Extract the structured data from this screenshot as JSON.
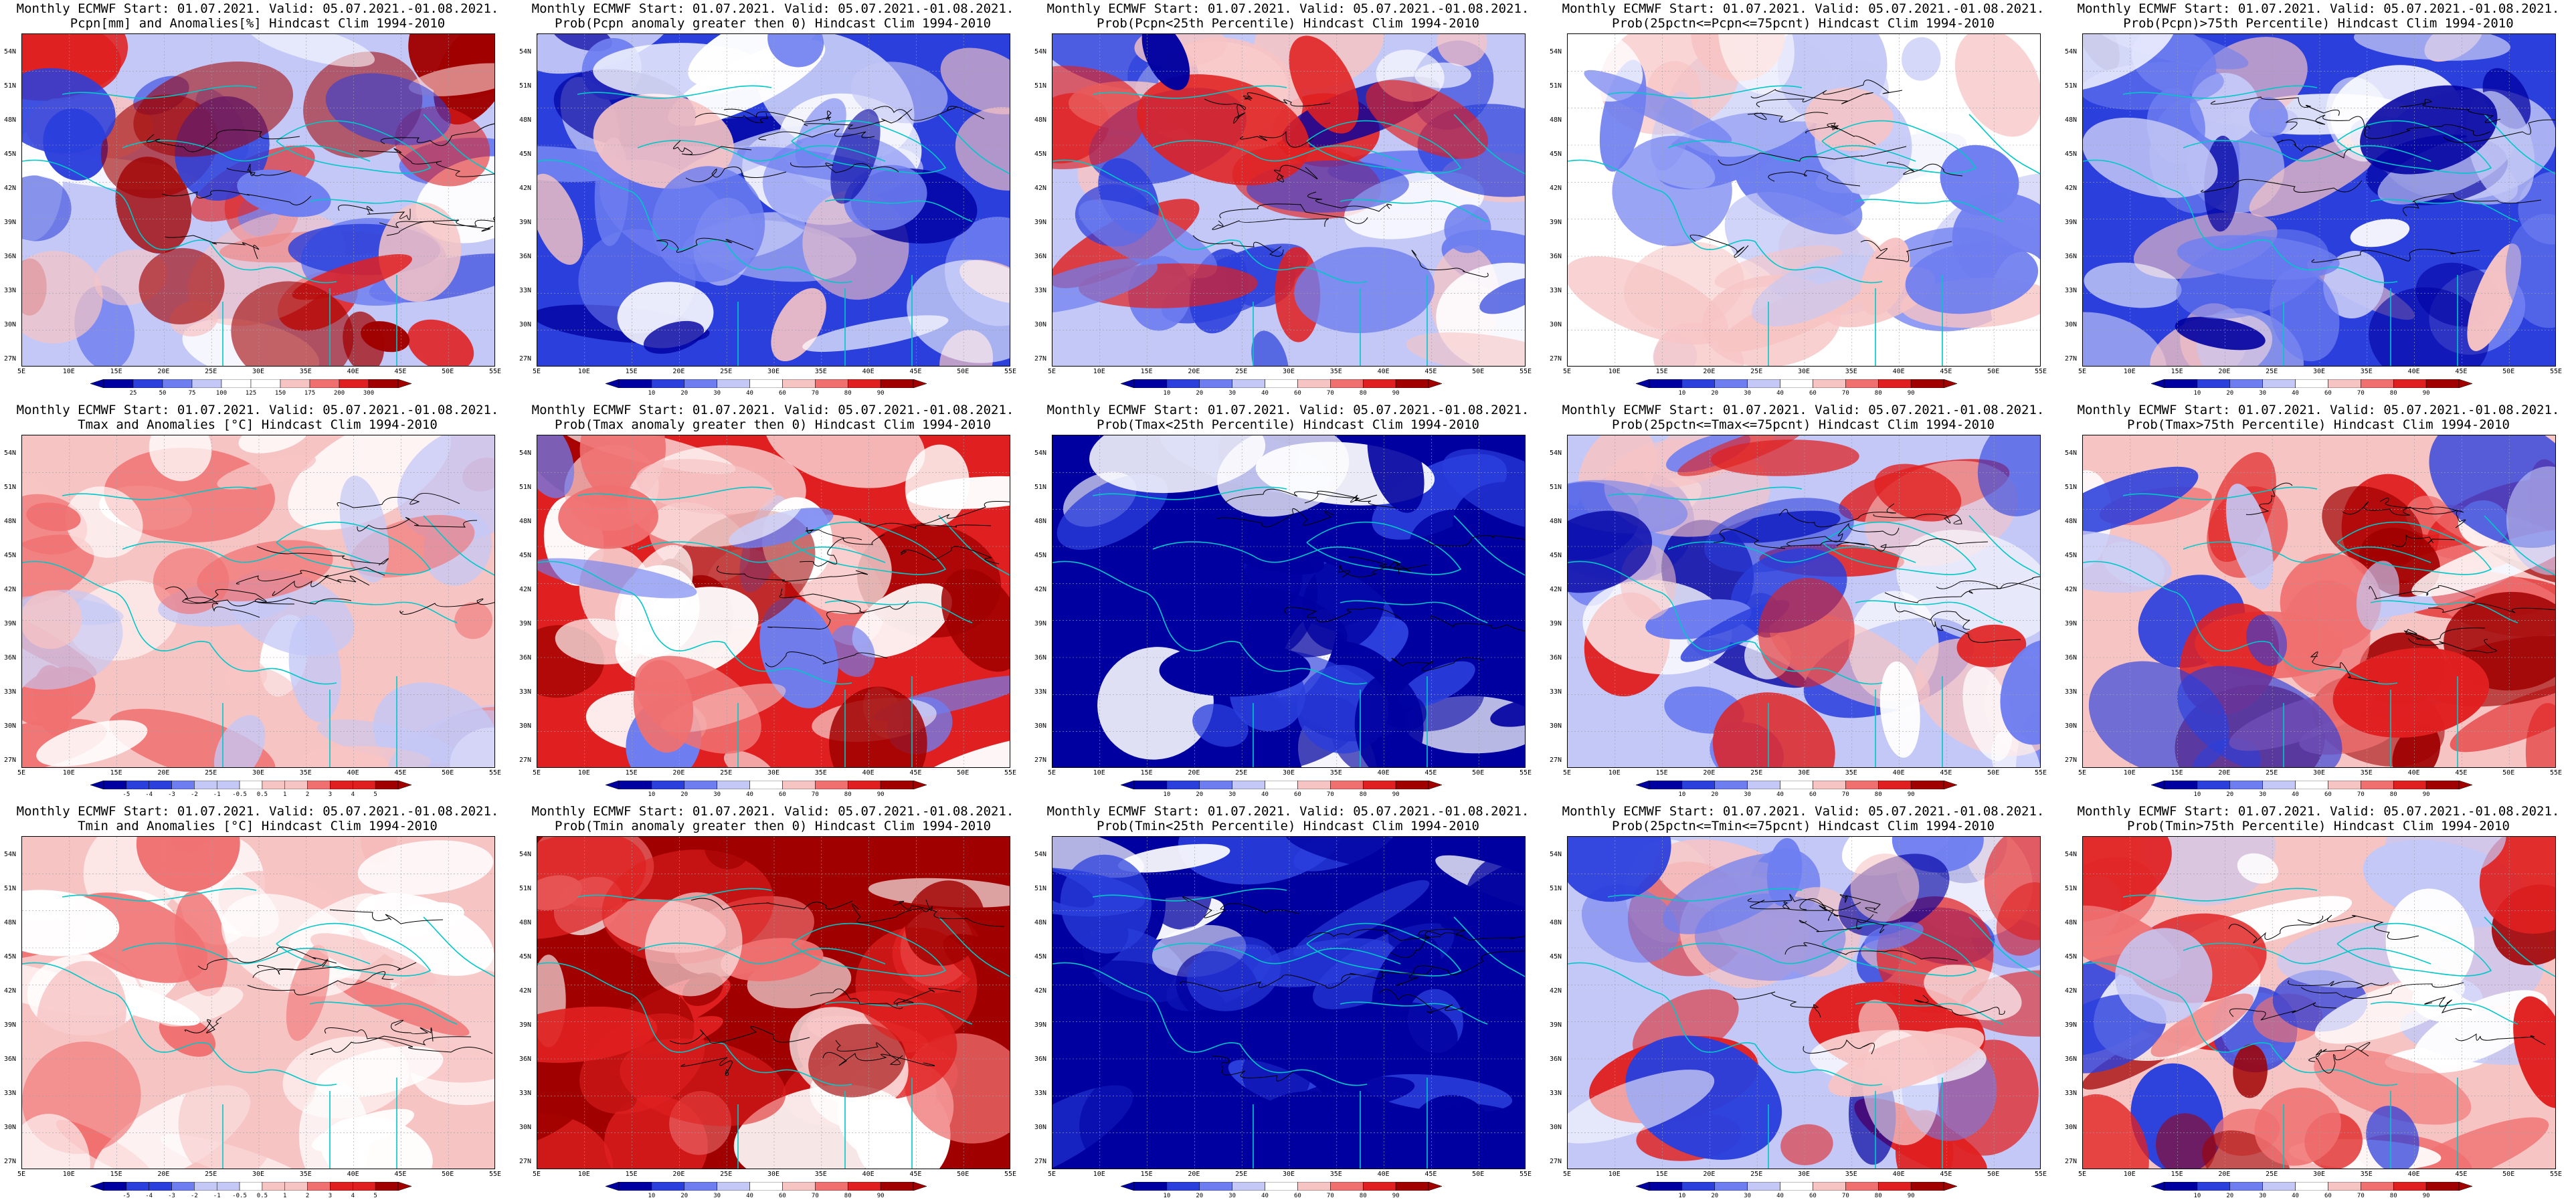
{
  "panels": [
    {
      "id": "p1",
      "line1": "Monthly ECMWF Start: 01.07.2021. Valid: 05.07.2021.-01.08.2021.",
      "line2": "Pcpn[mm] and Anomalies[%] Hindcast Clim 1994-2010",
      "scheme": "pcpn_anom",
      "cbar_labels": [
        "25",
        "50",
        "75",
        "100",
        "125",
        "150",
        "175",
        "200",
        "300"
      ]
    },
    {
      "id": "p2",
      "line1": "Monthly ECMWF Start: 01.07.2021. Valid: 05.07.2021.-01.08.2021.",
      "line2": "Prob(Pcpn anomaly greater then 0) Hindcast Clim 1994-2010",
      "scheme": "prob_blue",
      "cbar_labels": [
        "10",
        "20",
        "30",
        "40",
        "60",
        "70",
        "80",
        "90"
      ]
    },
    {
      "id": "p3",
      "line1": "Monthly ECMWF Start: 01.07.2021. Valid: 05.07.2021.-01.08.2021.",
      "line2": "Prob(Pcpn<25th Percentile) Hindcast Clim 1994-2010",
      "scheme": "prob_mixed",
      "cbar_labels": [
        "10",
        "20",
        "30",
        "40",
        "60",
        "70",
        "80",
        "90"
      ]
    },
    {
      "id": "p4",
      "line1": "Monthly ECMWF Start: 01.07.2021. Valid: 05.07.2021.-01.08.2021.",
      "line2": "Prob(25pctn<=Pcpn<=75pcnt) Hindcast Clim 1994-2010",
      "scheme": "prob_light",
      "cbar_labels": [
        "10",
        "20",
        "30",
        "40",
        "60",
        "70",
        "80",
        "90"
      ]
    },
    {
      "id": "p5",
      "line1": "Monthly ECMWF Start: 01.07.2021. Valid: 05.07.2021.-01.08.2021.",
      "line2": "Prob(Pcpn)>75th Percentile) Hindcast Clim 1994-2010",
      "scheme": "prob_blue",
      "cbar_labels": [
        "10",
        "20",
        "30",
        "40",
        "60",
        "70",
        "80",
        "90"
      ]
    },
    {
      "id": "p6",
      "line1": "Monthly ECMWF Start: 01.07.2021. Valid: 05.07.2021.-01.08.2021.",
      "line2": "Tmax and Anomalies [°C] Hindcast Clim 1994-2010",
      "scheme": "temp_anom",
      "cbar_labels": [
        "-5",
        "-4",
        "-3",
        "-2",
        "-1",
        "-0.5",
        "0.5",
        "1",
        "2",
        "3",
        "4",
        "5"
      ]
    },
    {
      "id": "p7",
      "line1": "Monthly ECMWF Start: 01.07.2021. Valid: 05.07.2021.-01.08.2021.",
      "line2": "Prob(Tmax anomaly greater then 0) Hindcast Clim 1994-2010",
      "scheme": "prob_red",
      "cbar_labels": [
        "10",
        "20",
        "30",
        "40",
        "60",
        "70",
        "80",
        "90"
      ]
    },
    {
      "id": "p8",
      "line1": "Monthly ECMWF Start: 01.07.2021. Valid: 05.07.2021.-01.08.2021.",
      "line2": "Prob(Tmax<25th Percentile) Hindcast Clim 1994-2010",
      "scheme": "prob_deepblue",
      "cbar_labels": [
        "10",
        "20",
        "30",
        "40",
        "60",
        "70",
        "80",
        "90"
      ]
    },
    {
      "id": "p9",
      "line1": "Monthly ECMWF Start: 01.07.2021. Valid: 05.07.2021.-01.08.2021.",
      "line2": "Prob(25pctn<=Tmax<=75pcnt) Hindcast Clim 1994-2010",
      "scheme": "prob_mixed",
      "cbar_labels": [
        "10",
        "20",
        "30",
        "40",
        "60",
        "70",
        "80",
        "90"
      ]
    },
    {
      "id": "p10",
      "line1": "Monthly ECMWF Start: 01.07.2021. Valid: 05.07.2021.-01.08.2021.",
      "line2": "Prob(Tmax>75th Percentile) Hindcast Clim 1994-2010",
      "scheme": "prob_redmix",
      "cbar_labels": [
        "10",
        "20",
        "30",
        "40",
        "60",
        "70",
        "80",
        "90"
      ]
    },
    {
      "id": "p11",
      "line1": "Monthly ECMWF Start: 01.07.2021. Valid: 05.07.2021.-01.08.2021.",
      "line2": "Tmin and Anomalies [°C] Hindcast Clim 1994-2010",
      "scheme": "temp_light",
      "cbar_labels": [
        "-5",
        "-4",
        "-3",
        "-2",
        "-1",
        "-0.5",
        "0.5",
        "1",
        "2",
        "3",
        "4",
        "5"
      ]
    },
    {
      "id": "p12",
      "line1": "Monthly ECMWF Start: 01.07.2021. Valid: 05.07.2021.-01.08.2021.",
      "line2": "Prob(Tmin anomaly greater then 0) Hindcast Clim 1994-2010",
      "scheme": "prob_deepred",
      "cbar_labels": [
        "10",
        "20",
        "30",
        "40",
        "60",
        "70",
        "80",
        "90"
      ]
    },
    {
      "id": "p13",
      "line1": "Monthly ECMWF Start: 01.07.2021. Valid: 05.07.2021.-01.08.2021.",
      "line2": "Prob(Tmin<25th Percentile) Hindcast Clim 1994-2010",
      "scheme": "prob_deepblue",
      "cbar_labels": [
        "10",
        "20",
        "30",
        "40",
        "60",
        "70",
        "80",
        "90"
      ]
    },
    {
      "id": "p14",
      "line1": "Monthly ECMWF Start: 01.07.2021. Valid: 05.07.2021.-01.08.2021.",
      "line2": "Prob(25pctn<=Tmin<=75pcnt) Hindcast Clim 1994-2010",
      "scheme": "prob_mixed",
      "cbar_labels": [
        "10",
        "20",
        "30",
        "40",
        "60",
        "70",
        "80",
        "90"
      ]
    },
    {
      "id": "p15",
      "line1": "Monthly ECMWF Start: 01.07.2021. Valid: 05.07.2021.-01.08.2021.",
      "line2": "Prob(Tmin>75th Percentile) Hindcast Clim 1994-2010",
      "scheme": "prob_redmix",
      "cbar_labels": [
        "10",
        "20",
        "30",
        "40",
        "60",
        "70",
        "80",
        "90"
      ]
    }
  ],
  "lat_labels": [
    "54N",
    "51N",
    "48N",
    "45N",
    "42N",
    "39N",
    "36N",
    "33N",
    "30N",
    "27N"
  ],
  "lon_labels": [
    "5E",
    "10E",
    "15E",
    "20E",
    "25E",
    "30E",
    "35E",
    "40E",
    "45E",
    "50E",
    "55E"
  ],
  "colors": {
    "boundary": "#00c8c8",
    "contour": "#000000",
    "deep_blue": "#0000a0",
    "blue": "#2a3fdc",
    "mid_blue": "#6e7ef0",
    "light_blue": "#c4c8f6",
    "white": "#ffffff",
    "light_red": "#f7c4c4",
    "mid_red": "#f07070",
    "red": "#e02020",
    "deep_red": "#a00000"
  }
}
